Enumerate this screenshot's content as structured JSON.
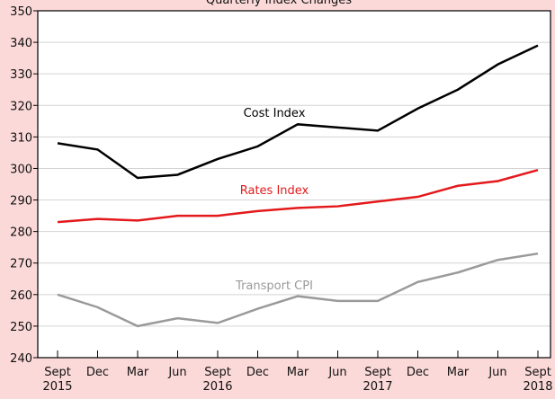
{
  "chart_data": {
    "type": "line",
    "title": "Quarterly Index Changes",
    "categories": [
      "Sept 2015",
      "Dec",
      "Mar",
      "Jun",
      "Sept 2016",
      "Dec",
      "Mar",
      "Jun",
      "Sept 2017",
      "Dec",
      "Mar",
      "Jun",
      "Sept 2018"
    ],
    "series": [
      {
        "name": "Cost Index",
        "color": "#000000",
        "values": [
          308,
          306,
          297,
          298,
          303,
          307,
          314,
          313,
          312,
          319,
          325,
          333,
          339
        ]
      },
      {
        "name": "Rates Index",
        "color": "#e3191b",
        "values": [
          283,
          284,
          283.5,
          285,
          285,
          286.5,
          287.5,
          288,
          289.5,
          291,
          294.5,
          296,
          299.5
        ]
      },
      {
        "name": "Transport CPI",
        "color": "#9a9a9a",
        "values": [
          260,
          256,
          250,
          252.5,
          251,
          255.5,
          259.5,
          258,
          258,
          264,
          267,
          271,
          273
        ]
      }
    ],
    "ylim": [
      240,
      350
    ],
    "yticks": [
      240,
      250,
      260,
      270,
      280,
      290,
      300,
      310,
      320,
      330,
      340,
      350
    ],
    "grid": true
  }
}
